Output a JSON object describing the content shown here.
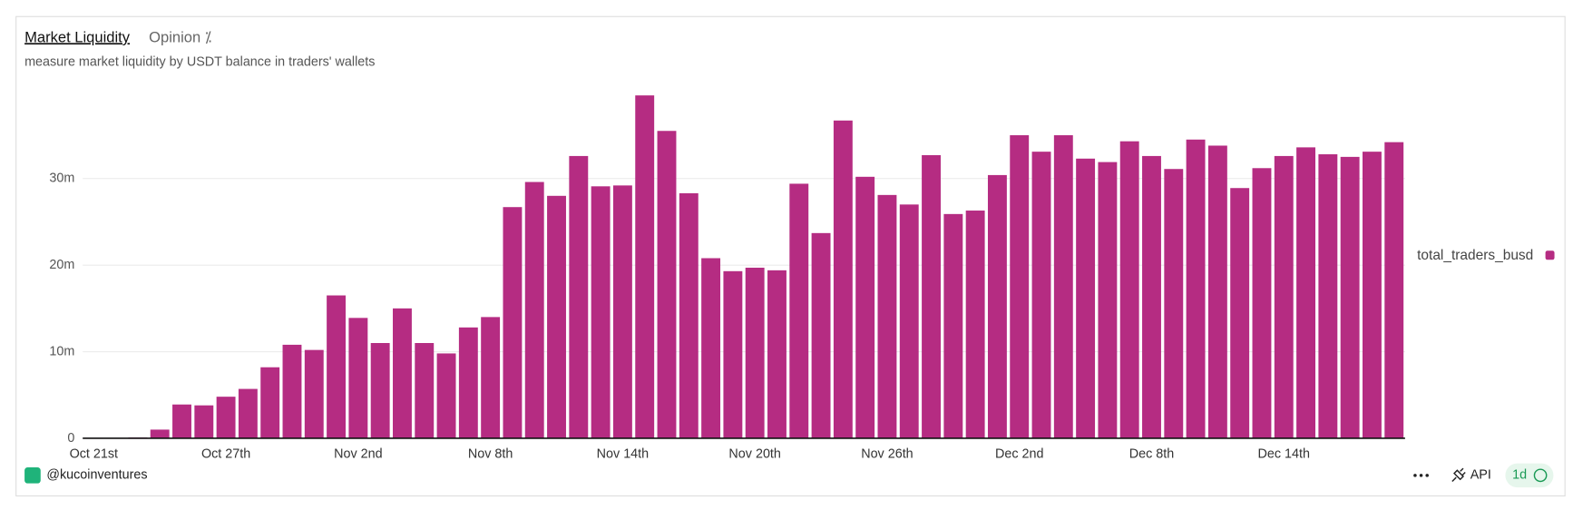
{
  "chart_data": {
    "type": "bar",
    "title": "Market Liquidity",
    "badge": "Opinion ⁒",
    "subtitle": "measure market liquidity by USDT balance in traders' wallets",
    "categories": [
      "Oct 21st",
      null,
      null,
      null,
      null,
      null,
      "Oct 27th",
      null,
      null,
      null,
      null,
      null,
      "Nov 2nd",
      null,
      null,
      null,
      null,
      null,
      "Nov 8th",
      null,
      null,
      null,
      null,
      null,
      "Nov 14th",
      null,
      null,
      null,
      null,
      null,
      "Nov 20th",
      null,
      null,
      null,
      null,
      null,
      "Nov 26th",
      null,
      null,
      null,
      null,
      null,
      "Dec 2nd",
      null,
      null,
      null,
      null,
      null,
      "Dec 8th",
      null,
      null,
      null,
      null,
      null,
      "Dec 14th",
      null,
      null,
      null,
      null,
      null
    ],
    "series": [
      {
        "name": "total_traders_busd",
        "color": "#b52c82",
        "values": [
          0.05,
          0.05,
          0.1,
          1.0,
          3.9,
          3.8,
          4.8,
          5.7,
          8.2,
          10.8,
          10.2,
          16.5,
          13.9,
          11.0,
          15.0,
          11.0,
          9.8,
          12.8,
          14.0,
          26.7,
          29.6,
          28.0,
          32.6,
          29.1,
          29.2,
          39.6,
          35.5,
          28.3,
          20.8,
          19.3,
          19.7,
          19.4,
          29.4,
          23.7,
          36.7,
          30.2,
          28.1,
          27.0,
          32.7,
          25.9,
          26.3,
          30.4,
          35.0,
          33.1,
          35.0,
          32.3,
          31.9,
          34.3,
          32.6,
          31.1,
          34.5,
          33.8,
          28.9,
          31.2,
          32.6,
          33.6,
          32.8,
          32.5,
          33.1,
          34.2
        ]
      }
    ],
    "ylim": [
      0,
      40
    ],
    "yticks": [
      0,
      {
        "value": 10,
        "label": "10m"
      },
      {
        "value": 20,
        "label": "20m"
      },
      {
        "value": 30,
        "label": "30m"
      }
    ],
    "grid": true,
    "legend": "right",
    "author": "@kucoinventures",
    "api": "API",
    "refresh": "1d"
  }
}
